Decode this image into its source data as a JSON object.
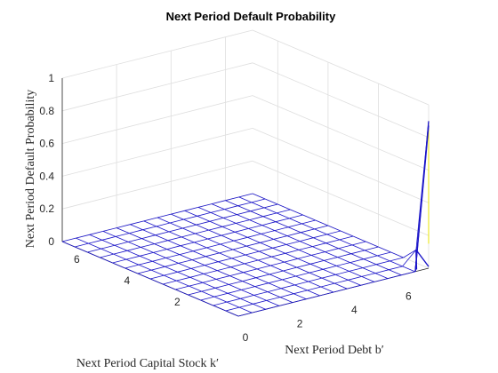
{
  "chart_data": {
    "type": "surface",
    "title": "Next Period Default Probability",
    "xlabel": "Next Period Debt b′",
    "ylabel": "Next Period Capital Stock k′",
    "zlabel": "Next Period Default Probability",
    "xlim": [
      0,
      7
    ],
    "ylim": [
      0,
      7
    ],
    "zlim": [
      0,
      1
    ],
    "xticks": [
      "0",
      "2",
      "4",
      "6"
    ],
    "yticks": [
      "2",
      "4",
      "6"
    ],
    "zticks": [
      "0",
      "0.2",
      "0.4",
      "0.6",
      "0.8",
      "1"
    ],
    "grid": true,
    "colors": {
      "mesh": "#1a14c8",
      "peak": "#e8e400",
      "grid": "#dedede"
    },
    "surface": {
      "grid_lines": 15,
      "baseline_z": 0,
      "peak": {
        "b": 7,
        "k": 0,
        "z": 0.9
      },
      "secondary": {
        "b": 7,
        "k": 0.5,
        "z": 0.08
      }
    }
  }
}
